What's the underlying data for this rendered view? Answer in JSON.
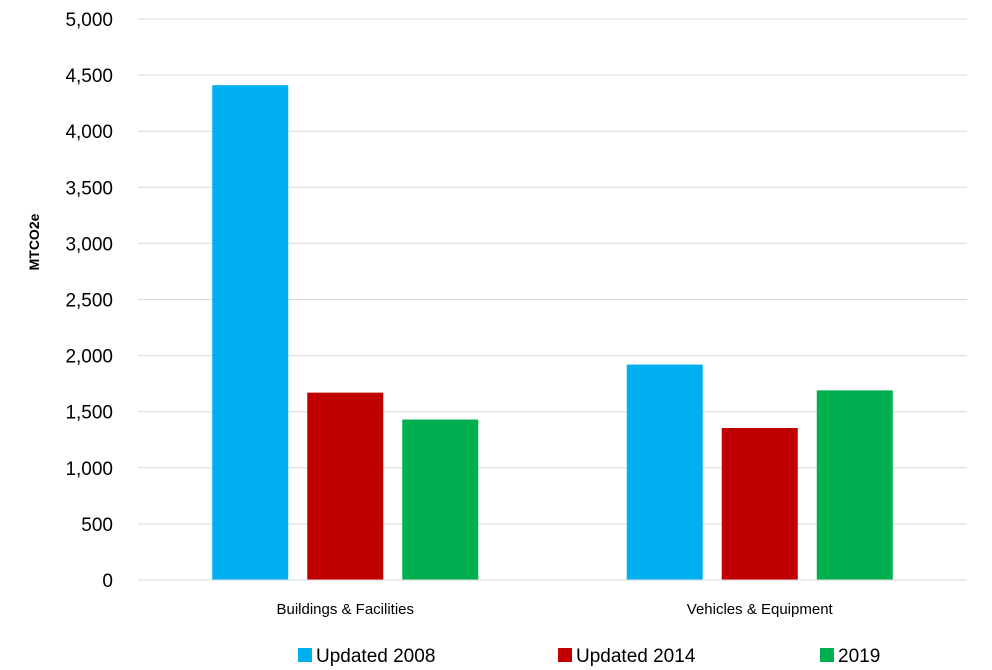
{
  "chart_data": {
    "type": "bar",
    "title": "",
    "xlabel": "",
    "ylabel": "MTCO2e",
    "ylim": [
      0,
      5000
    ],
    "ytick_step": 500,
    "grid": true,
    "legend_position": "bottom",
    "categories": [
      "Buildings & Facilities",
      "Vehicles & Equipment"
    ],
    "series": [
      {
        "name": "Updated 2008",
        "color": "#00b0f0",
        "values": [
          4410,
          1920
        ]
      },
      {
        "name": "Updated 2014",
        "color": "#c00000",
        "values": [
          1670,
          1355
        ]
      },
      {
        "name": "2019",
        "color": "#00b050",
        "values": [
          1430,
          1690
        ]
      }
    ]
  }
}
